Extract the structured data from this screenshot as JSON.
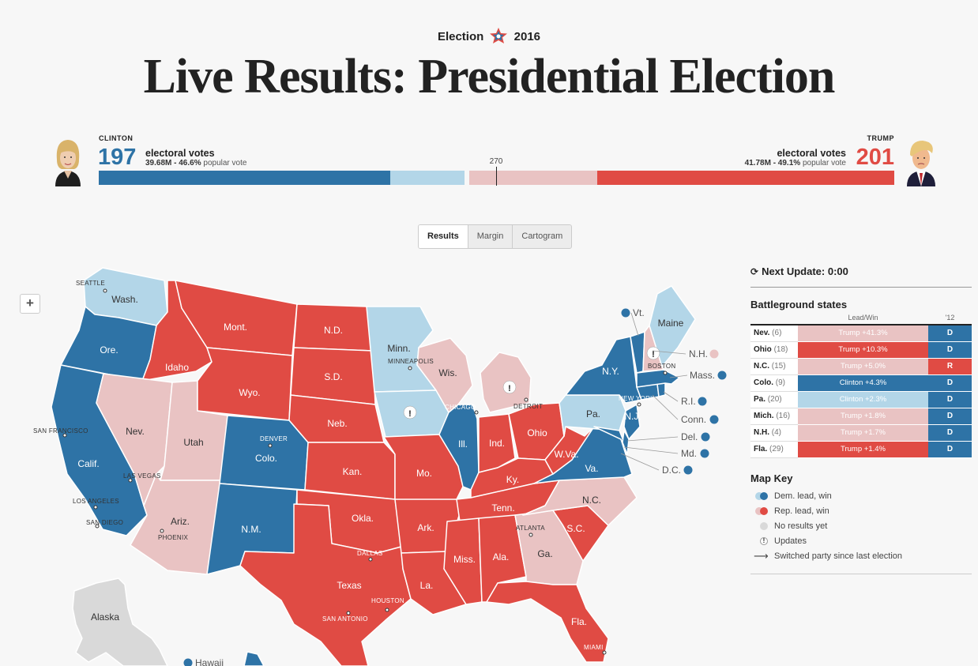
{
  "header": {
    "kicker_left": "Election",
    "kicker_right": "2016",
    "title": "Live Results: Presidential Election"
  },
  "tally": {
    "clinton": {
      "name": "CLINTON",
      "ev": "197",
      "ev_label": "electoral votes",
      "pv_bold": "39.68M - 46.6%",
      "pv_rest": "popular vote"
    },
    "trump": {
      "name": "TRUMP",
      "ev": "201",
      "ev_label": "electoral votes",
      "pv_bold": "41.78M - 49.1%",
      "pv_rest": "popular vote"
    },
    "threshold": "270",
    "bar": {
      "total_ev": 538,
      "clinton_win": 197,
      "clinton_lead": 52,
      "trump_lead": 88,
      "trump_win": 201
    }
  },
  "view_tabs": [
    "Results",
    "Margin",
    "Cartogram"
  ],
  "zoom_in_label": "+",
  "sidebar": {
    "next_update": "Next Update: 0:00",
    "battleground_title": "Battleground states",
    "col_lead": "Lead/Win",
    "col_prev": "'12",
    "rows": [
      {
        "state": "Nev.",
        "ev": "(6)",
        "lead": "Trump +41.3%",
        "lead_color": "#e9c3c3",
        "prev": "D",
        "prev_color": "#2e73a6"
      },
      {
        "state": "Ohio",
        "ev": "(18)",
        "lead": "Trump +10.3%",
        "lead_color": "#e04b44",
        "prev": "D",
        "prev_color": "#2e73a6"
      },
      {
        "state": "N.C.",
        "ev": "(15)",
        "lead": "Trump +5.0%",
        "lead_color": "#e9c3c3",
        "prev": "R",
        "prev_color": "#e04b44"
      },
      {
        "state": "Colo.",
        "ev": "(9)",
        "lead": "Clinton +4.3%",
        "lead_color": "#2e73a6",
        "prev": "D",
        "prev_color": "#2e73a6"
      },
      {
        "state": "Pa.",
        "ev": "(20)",
        "lead": "Clinton +2.3%",
        "lead_color": "#b3d6e8",
        "prev": "D",
        "prev_color": "#2e73a6"
      },
      {
        "state": "Mich.",
        "ev": "(16)",
        "lead": "Trump +1.8%",
        "lead_color": "#e9c3c3",
        "prev": "D",
        "prev_color": "#2e73a6"
      },
      {
        "state": "N.H.",
        "ev": "(4)",
        "lead": "Trump +1.7%",
        "lead_color": "#e9c3c3",
        "prev": "D",
        "prev_color": "#2e73a6"
      },
      {
        "state": "Fla.",
        "ev": "(29)",
        "lead": "Trump +1.4%",
        "lead_color": "#e04b44",
        "prev": "D",
        "prev_color": "#2e73a6"
      }
    ],
    "key_title": "Map Key",
    "key": [
      {
        "label": "Dem. lead, win"
      },
      {
        "label": "Rep. lead, win"
      },
      {
        "label": "No results yet"
      },
      {
        "label": "Updates"
      },
      {
        "label": "Switched party since last election"
      }
    ]
  },
  "colors": {
    "dem_win": "#2e73a6",
    "dem_lead": "#b3d6e8",
    "rep_win": "#e04b44",
    "rep_lead": "#e9c3c3",
    "no_results": "#d9d9d9"
  },
  "map": {
    "states": {
      "wa": {
        "label": "Wash.",
        "status": "dem_lead"
      },
      "or": {
        "label": "Ore.",
        "status": "dem_win"
      },
      "ca": {
        "label": "Calif.",
        "status": "dem_win"
      },
      "id": {
        "label": "Idaho",
        "status": "rep_win"
      },
      "nv": {
        "label": "Nev.",
        "status": "rep_lead"
      },
      "ut": {
        "label": "Utah",
        "status": "rep_lead"
      },
      "az": {
        "label": "Ariz.",
        "status": "rep_lead"
      },
      "mt": {
        "label": "Mont.",
        "status": "rep_win"
      },
      "wy": {
        "label": "Wyo.",
        "status": "rep_win"
      },
      "co": {
        "label": "Colo.",
        "status": "dem_win"
      },
      "nm": {
        "label": "N.M.",
        "status": "dem_win"
      },
      "nd": {
        "label": "N.D.",
        "status": "rep_win"
      },
      "sd": {
        "label": "S.D.",
        "status": "rep_win"
      },
      "ne": {
        "label": "Neb.",
        "status": "rep_win"
      },
      "ks": {
        "label": "Kan.",
        "status": "rep_win"
      },
      "ok": {
        "label": "Okla.",
        "status": "rep_win"
      },
      "tx": {
        "label": "Texas",
        "status": "rep_win"
      },
      "mn": {
        "label": "Minn.",
        "status": "dem_lead"
      },
      "ia": {
        "label": "",
        "status": "dem_lead"
      },
      "mo": {
        "label": "Mo.",
        "status": "rep_win"
      },
      "ar": {
        "label": "Ark.",
        "status": "rep_win"
      },
      "la": {
        "label": "La.",
        "status": "rep_win"
      },
      "wi": {
        "label": "Wis.",
        "status": "rep_lead"
      },
      "il": {
        "label": "Ill.",
        "status": "dem_win"
      },
      "mi": {
        "label": "",
        "status": "rep_lead"
      },
      "in": {
        "label": "Ind.",
        "status": "rep_win"
      },
      "oh": {
        "label": "Ohio",
        "status": "rep_win"
      },
      "ky": {
        "label": "Ky.",
        "status": "rep_win"
      },
      "tn": {
        "label": "Tenn.",
        "status": "rep_win"
      },
      "ms": {
        "label": "Miss.",
        "status": "rep_win"
      },
      "al": {
        "label": "Ala.",
        "status": "rep_win"
      },
      "ga": {
        "label": "Ga.",
        "status": "rep_lead"
      },
      "fl": {
        "label": "Fla.",
        "status": "rep_win"
      },
      "sc": {
        "label": "S.C.",
        "status": "rep_win"
      },
      "nc": {
        "label": "N.C.",
        "status": "rep_lead"
      },
      "va": {
        "label": "Va.",
        "status": "dem_win"
      },
      "wv": {
        "label": "W.Va.",
        "status": "rep_win"
      },
      "pa": {
        "label": "Pa.",
        "status": "dem_lead"
      },
      "ny": {
        "label": "N.Y.",
        "status": "dem_win"
      },
      "nj": {
        "label": "N.J.",
        "status": "dem_win"
      },
      "md": {
        "label": "",
        "status": "dem_win"
      },
      "de": {
        "label": "",
        "status": "dem_win"
      },
      "ct": {
        "label": "",
        "status": "dem_win"
      },
      "ri": {
        "label": "",
        "status": "dem_win"
      },
      "ma": {
        "label": "",
        "status": "dem_win"
      },
      "vt": {
        "label": "",
        "status": "dem_win"
      },
      "nh": {
        "label": "",
        "status": "rep_lead"
      },
      "me": {
        "label": "Maine",
        "status": "dem_lead"
      },
      "ak": {
        "label": "Alaska",
        "status": "no_results"
      },
      "hi": {
        "label": "",
        "status": "dem_win"
      }
    },
    "callouts": [
      {
        "id": "vt",
        "label": "Vt.",
        "status": "dem_win"
      },
      {
        "id": "nh",
        "label": "N.H.",
        "status": "rep_lead"
      },
      {
        "id": "ma",
        "label": "Mass.",
        "status": "dem_win"
      },
      {
        "id": "ri",
        "label": "R.I.",
        "status": "dem_win"
      },
      {
        "id": "ct",
        "label": "Conn.",
        "status": "dem_win"
      },
      {
        "id": "de",
        "label": "Del.",
        "status": "dem_win"
      },
      {
        "id": "md",
        "label": "Md.",
        "status": "dem_win"
      },
      {
        "id": "dc",
        "label": "D.C.",
        "status": "dem_win"
      },
      {
        "id": "hi",
        "label": "Hawaii",
        "status": "dem_win"
      }
    ],
    "cities": [
      "SEATTLE",
      "SAN FRANCISCO",
      "LAS VEGAS",
      "LOS ANGELES",
      "SAN DIEGO",
      "PHOENIX",
      "DENVER",
      "DALLAS",
      "HOUSTON",
      "SAN ANTONIO",
      "MINNEAPOLIS",
      "CHICAGO",
      "DETROIT",
      "ATLANTA",
      "NEW YORK",
      "BOSTON",
      "MIAMI"
    ]
  }
}
